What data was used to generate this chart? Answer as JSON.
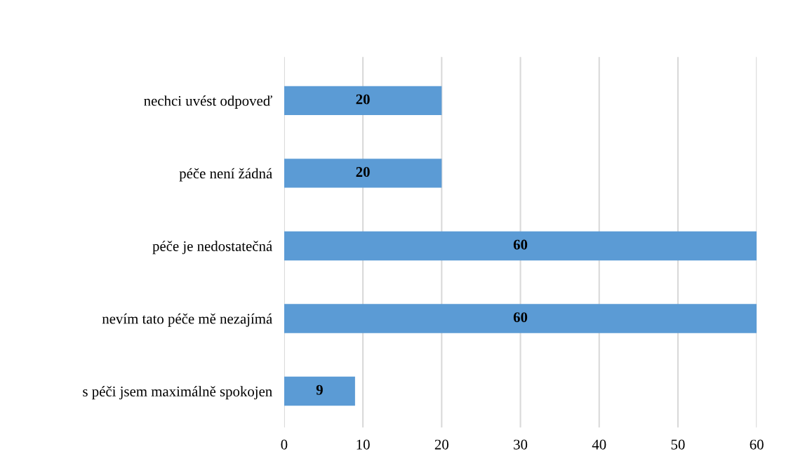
{
  "chart_data": {
    "type": "bar",
    "orientation": "horizontal",
    "categories": [
      "nechci uvést odpoveď",
      "péče není žádná",
      "péče je nedostatečná",
      "nevím tato péče mě nezajímá",
      "s péči jsem maximálně spokojen"
    ],
    "values": [
      20,
      20,
      60,
      60,
      9
    ],
    "color": "#5b9bd5",
    "xlim": [
      0,
      60
    ],
    "xticks": [
      0,
      10,
      20,
      30,
      40,
      50,
      60
    ],
    "grid": "x",
    "data_labels": true,
    "legend": false
  }
}
